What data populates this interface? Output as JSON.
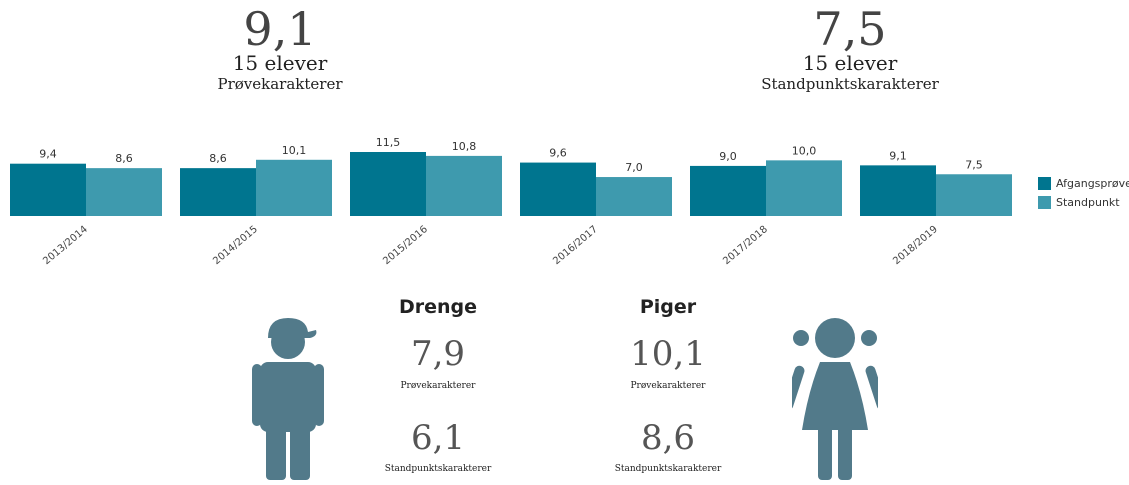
{
  "kpis": {
    "left": {
      "value": "9,1",
      "count": "15 elever",
      "label": "Prøvekarakterer"
    },
    "right": {
      "value": "7,5",
      "count": "15 elever",
      "label": "Standpunktskarakterer"
    }
  },
  "colors": {
    "afgang": "#00758f",
    "standpunkt": "#3e9aae",
    "figure": "#527a8a"
  },
  "chart_data": {
    "type": "bar",
    "categories": [
      "2013/2014",
      "2014/2015",
      "2015/2016",
      "2016/2017",
      "2017/2018",
      "2018/2019"
    ],
    "series": [
      {
        "name": "Afgangsprøve",
        "values": [
          9.4,
          8.6,
          11.5,
          9.6,
          9.0,
          9.1
        ],
        "labels": [
          "9,4",
          "8,6",
          "11,5",
          "9,6",
          "9,0",
          "9,1"
        ]
      },
      {
        "name": "Standpunkt",
        "values": [
          8.6,
          10.1,
          10.8,
          7.0,
          10.0,
          7.5
        ],
        "labels": [
          "8,6",
          "10,1",
          "10,8",
          "7,0",
          "10,0",
          "7,5"
        ]
      }
    ],
    "legend": "right",
    "grid": false
  },
  "gender": {
    "boys": {
      "title": "Drenge",
      "exam_value": "7,9",
      "exam_label": "Prøvekarakterer",
      "standpunkt_value": "6,1",
      "standpunkt_label": "Standpunktskarakterer"
    },
    "girls": {
      "title": "Piger",
      "exam_value": "10,1",
      "exam_label": "Prøvekarakterer",
      "standpunkt_value": "8,6",
      "standpunkt_label": "Standpunktskarakterer"
    }
  },
  "icons": {
    "boy": "boy-figure-icon",
    "girl": "girl-figure-icon"
  }
}
